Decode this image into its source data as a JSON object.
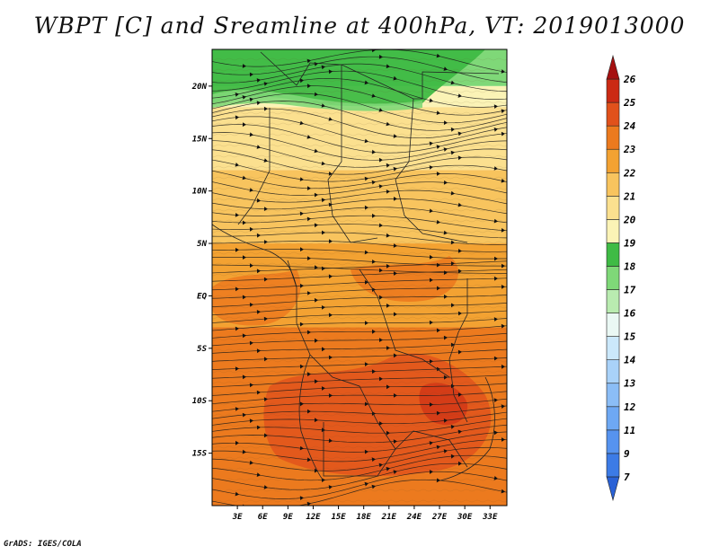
{
  "title": "WBPT [C] and Sreamline at 400hPa, VT: 2019013000",
  "credit": "GrADS: IGES/COLA",
  "chart_data": {
    "type": "heatmap",
    "title": "WBPT [C] and Sreamline at 400hPa, VT: 2019013000",
    "variable": "WBPT",
    "units": "C",
    "overlay": "streamlines",
    "level": "400hPa",
    "valid_time": "2019013000",
    "xlim": [
      0,
      35
    ],
    "ylim": [
      -20,
      23.5
    ],
    "x_ticks": [
      {
        "value": 3,
        "label": "3E"
      },
      {
        "value": 6,
        "label": "6E"
      },
      {
        "value": 9,
        "label": "9E"
      },
      {
        "value": 12,
        "label": "12E"
      },
      {
        "value": 15,
        "label": "15E"
      },
      {
        "value": 18,
        "label": "18E"
      },
      {
        "value": 21,
        "label": "21E"
      },
      {
        "value": 24,
        "label": "24E"
      },
      {
        "value": 27,
        "label": "27E"
      },
      {
        "value": 30,
        "label": "30E"
      },
      {
        "value": 33,
        "label": "33E"
      }
    ],
    "y_ticks": [
      {
        "value": 20,
        "label": "20N"
      },
      {
        "value": 15,
        "label": "15N"
      },
      {
        "value": 10,
        "label": "10N"
      },
      {
        "value": 5,
        "label": "5N"
      },
      {
        "value": 0,
        "label": "EQ"
      },
      {
        "value": -5,
        "label": "5S"
      },
      {
        "value": -10,
        "label": "10S"
      },
      {
        "value": -15,
        "label": "15S"
      }
    ],
    "colorbar": {
      "levels": [
        "7",
        "9",
        "11",
        "12",
        "13",
        "14",
        "15",
        "16",
        "17",
        "18",
        "19",
        "20",
        "21",
        "22",
        "23",
        "24",
        "25",
        "26"
      ],
      "colors": [
        "#2a62d6",
        "#3c7be6",
        "#5693ef",
        "#6ea8f3",
        "#8bbdf6",
        "#a9d2f9",
        "#cbe8fb",
        "#eaf8f4",
        "#b9ebb0",
        "#7fd878",
        "#3fbb45",
        "#fbf3b6",
        "#fbe08f",
        "#f8c45e",
        "#f3a232",
        "#ec7a1e",
        "#e1511b",
        "#cb2a14",
        "#a51010"
      ]
    },
    "field": [
      {
        "lat_min": 20,
        "lat_max": 23.5,
        "value": 17
      },
      {
        "lat_min": 18,
        "lat_max": 20,
        "value": 19
      },
      {
        "lat_min": 12,
        "lat_max": 18,
        "value": 20
      },
      {
        "lat_min": 5,
        "lat_max": 12,
        "value": 21
      },
      {
        "lat_min": -3,
        "lat_max": 5,
        "value": 22
      },
      {
        "lat_min": -20,
        "lat_max": -3,
        "value": 23
      }
    ],
    "streamline_direction": "westerly (west to east)"
  }
}
